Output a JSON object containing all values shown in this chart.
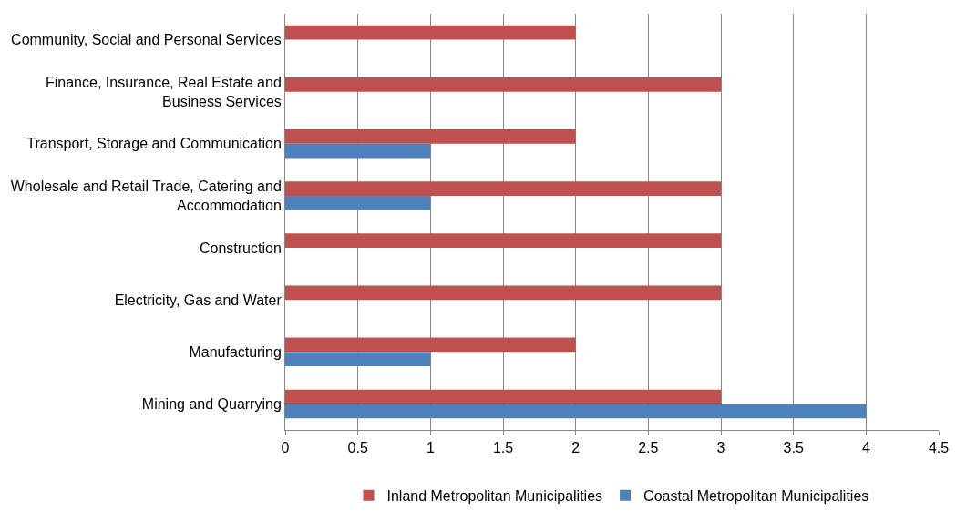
{
  "chart_data": {
    "type": "bar",
    "orientation": "horizontal",
    "categories": [
      "Community, Social and Personal Services",
      "Finance, Insurance, Real Estate and Business Services",
      "Transport, Storage and Communication",
      "Wholesale and Retail Trade, Catering and Accommodation",
      "Construction",
      "Electricity, Gas and Water",
      "Manufacturing",
      "Mining and Quarrying"
    ],
    "series": [
      {
        "name": "Inland Metropolitan Municipalities",
        "color": "#c0504d",
        "values": [
          2,
          3,
          2,
          3,
          3,
          3,
          2,
          3
        ]
      },
      {
        "name": "Coastal Metropolitan Municipalities",
        "color": "#4f81bd",
        "values": [
          0,
          0,
          1,
          1,
          0,
          0,
          1,
          4
        ]
      }
    ],
    "xlim": [
      0,
      4.5
    ],
    "xticks": [
      0,
      0.5,
      1,
      1.5,
      2,
      2.5,
      3,
      3.5,
      4,
      4.5
    ],
    "grid": "x",
    "legend": "bottom"
  }
}
